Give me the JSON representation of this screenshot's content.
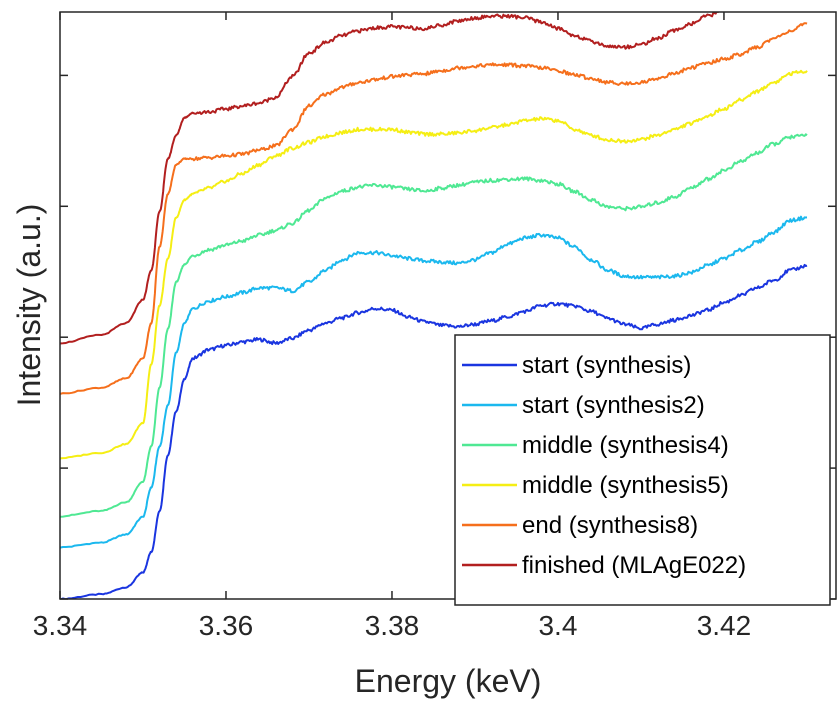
{
  "chart_data": {
    "type": "line",
    "title": "",
    "xlabel": "Energy (keV)",
    "ylabel": "Intensity (a.u.)",
    "xlim": [
      3.34,
      3.4335
    ],
    "ylim": [
      0,
      1
    ],
    "x_ticks": [
      {
        "value": 3.34,
        "label": "3.34"
      },
      {
        "value": 3.36,
        "label": "3.36"
      },
      {
        "value": 3.38,
        "label": "3.38"
      },
      {
        "value": 3.4,
        "label": "3.4"
      },
      {
        "value": 3.42,
        "label": "3.42"
      }
    ],
    "y_ticks": [
      0,
      0.223,
      0.446,
      0.669,
      0.892
    ],
    "y_tick_labels_shown": false,
    "grid": false,
    "legend_position": "bottom-right",
    "x": [
      3.34,
      3.345,
      3.348,
      3.35,
      3.351,
      3.352,
      3.353,
      3.354,
      3.355,
      3.356,
      3.358,
      3.36,
      3.362,
      3.364,
      3.366,
      3.368,
      3.37,
      3.372,
      3.374,
      3.376,
      3.378,
      3.38,
      3.382,
      3.384,
      3.386,
      3.388,
      3.39,
      3.392,
      3.394,
      3.396,
      3.398,
      3.4,
      3.402,
      3.404,
      3.406,
      3.408,
      3.41,
      3.412,
      3.414,
      3.416,
      3.418,
      3.42,
      3.422,
      3.424,
      3.426,
      3.428,
      3.43
    ],
    "series": [
      {
        "name": "start (synthesis)",
        "color": "#1a35e0",
        "values": [
          0.0,
          0.008,
          0.02,
          0.045,
          0.08,
          0.15,
          0.245,
          0.32,
          0.375,
          0.41,
          0.425,
          0.432,
          0.438,
          0.442,
          0.436,
          0.444,
          0.458,
          0.47,
          0.479,
          0.488,
          0.495,
          0.492,
          0.48,
          0.472,
          0.466,
          0.464,
          0.468,
          0.474,
          0.481,
          0.49,
          0.5,
          0.503,
          0.499,
          0.49,
          0.478,
          0.468,
          0.461,
          0.468,
          0.475,
          0.483,
          0.492,
          0.505,
          0.517,
          0.53,
          0.543,
          0.56,
          0.568
        ]
      },
      {
        "name": "start (synthesis2)",
        "color": "#1bb8ee",
        "values": [
          0.088,
          0.096,
          0.11,
          0.14,
          0.19,
          0.26,
          0.33,
          0.42,
          0.47,
          0.495,
          0.508,
          0.515,
          0.522,
          0.53,
          0.53,
          0.525,
          0.54,
          0.56,
          0.578,
          0.59,
          0.59,
          0.585,
          0.58,
          0.576,
          0.574,
          0.572,
          0.578,
          0.59,
          0.605,
          0.615,
          0.62,
          0.615,
          0.6,
          0.578,
          0.56,
          0.55,
          0.548,
          0.548,
          0.55,
          0.556,
          0.568,
          0.58,
          0.594,
          0.608,
          0.625,
          0.645,
          0.65
        ]
      },
      {
        "name": "middle (synthesis4)",
        "color": "#4fe893",
        "values": [
          0.141,
          0.15,
          0.165,
          0.2,
          0.26,
          0.36,
          0.46,
          0.54,
          0.57,
          0.585,
          0.595,
          0.603,
          0.61,
          0.62,
          0.628,
          0.64,
          0.662,
          0.683,
          0.695,
          0.702,
          0.705,
          0.702,
          0.698,
          0.695,
          0.7,
          0.705,
          0.71,
          0.713,
          0.715,
          0.716,
          0.713,
          0.707,
          0.694,
          0.68,
          0.668,
          0.665,
          0.668,
          0.675,
          0.685,
          0.7,
          0.715,
          0.73,
          0.745,
          0.76,
          0.775,
          0.787,
          0.79
        ]
      },
      {
        "name": "middle (synthesis5)",
        "color": "#f5ee14",
        "values": [
          0.24,
          0.249,
          0.264,
          0.3,
          0.4,
          0.5,
          0.58,
          0.65,
          0.68,
          0.69,
          0.7,
          0.712,
          0.725,
          0.74,
          0.755,
          0.768,
          0.778,
          0.788,
          0.795,
          0.8,
          0.8,
          0.8,
          0.795,
          0.792,
          0.792,
          0.794,
          0.798,
          0.803,
          0.808,
          0.815,
          0.818,
          0.815,
          0.8,
          0.79,
          0.782,
          0.78,
          0.783,
          0.79,
          0.8,
          0.81,
          0.823,
          0.835,
          0.85,
          0.865,
          0.88,
          0.895,
          0.9
        ]
      },
      {
        "name": "end (synthesis8)",
        "color": "#f56f1c",
        "values": [
          0.35,
          0.36,
          0.376,
          0.41,
          0.47,
          0.6,
          0.69,
          0.74,
          0.75,
          0.75,
          0.752,
          0.755,
          0.758,
          0.765,
          0.772,
          0.8,
          0.84,
          0.86,
          0.872,
          0.88,
          0.885,
          0.89,
          0.893,
          0.895,
          0.9,
          0.905,
          0.908,
          0.91,
          0.91,
          0.908,
          0.905,
          0.9,
          0.893,
          0.887,
          0.88,
          0.878,
          0.88,
          0.887,
          0.895,
          0.905,
          0.913,
          0.92,
          0.928,
          0.94,
          0.955,
          0.968,
          0.98
        ]
      },
      {
        "name": "finished (MLAgE022)",
        "color": "#b21f1f",
        "values": [
          0.436,
          0.45,
          0.47,
          0.51,
          0.56,
          0.66,
          0.75,
          0.79,
          0.82,
          0.828,
          0.83,
          0.835,
          0.84,
          0.845,
          0.855,
          0.89,
          0.93,
          0.948,
          0.96,
          0.968,
          0.973,
          0.975,
          0.973,
          0.972,
          0.978,
          0.985,
          0.99,
          0.993,
          0.993,
          0.99,
          0.983,
          0.972,
          0.96,
          0.95,
          0.942,
          0.94,
          0.945,
          0.955,
          0.968,
          0.98,
          0.993,
          1.005,
          1.02,
          1.03,
          1.04,
          1.05,
          1.055
        ]
      }
    ]
  }
}
